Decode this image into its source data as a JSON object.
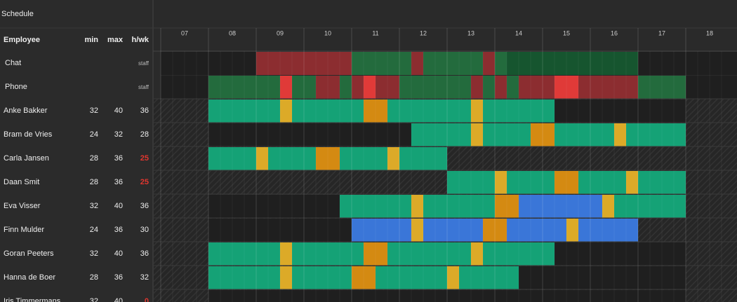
{
  "header": {
    "title": "Schedule"
  },
  "columns": {
    "employee": "Employee",
    "min": "min",
    "max": "max",
    "hwk": "h/wk"
  },
  "hours": [
    "07",
    "08",
    "09",
    "10",
    "11",
    "12",
    "13",
    "14",
    "15",
    "16",
    "17",
    "18"
  ],
  "channels": [
    {
      "name": "Chat",
      "tag": "staff"
    },
    {
      "name": "Phone",
      "tag": "staff"
    }
  ],
  "employees": [
    {
      "name": "Anke Bakker",
      "min": 32,
      "max": 40,
      "hwk": 36
    },
    {
      "name": "Bram de Vries",
      "min": 24,
      "max": 32,
      "hwk": 28
    },
    {
      "name": "Carla Jansen",
      "min": 28,
      "max": 36,
      "hwk": 25
    },
    {
      "name": "Daan Smit",
      "min": 28,
      "max": 36,
      "hwk": 25
    },
    {
      "name": "Eva Visser",
      "min": 32,
      "max": 40,
      "hwk": 36
    },
    {
      "name": "Finn Mulder",
      "min": 24,
      "max": 36,
      "hwk": 30
    },
    {
      "name": "Goran Peeters",
      "min": 32,
      "max": 40,
      "hwk": 36
    },
    {
      "name": "Hanna de Boer",
      "min": 28,
      "max": 36,
      "hwk": 32
    },
    {
      "name": "Iris Timmermans",
      "min": 32,
      "max": 40,
      "hwk": 0
    }
  ]
}
